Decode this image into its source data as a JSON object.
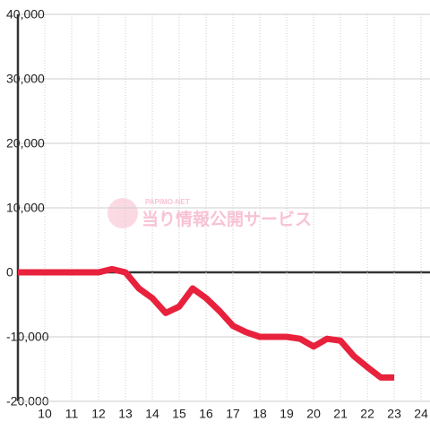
{
  "chart_data": {
    "type": "line",
    "watermark_small": "PAPIMO-NET",
    "watermark": "当り情報公開サービス",
    "x": [
      9,
      12,
      12.5,
      13,
      13.5,
      14,
      14.5,
      15,
      15.5,
      16,
      16.5,
      17,
      17.5,
      18,
      18.5,
      19,
      19.5,
      20,
      20.5,
      21,
      21.5,
      22,
      22.5,
      23
    ],
    "series": [
      {
        "color": "#e8213c",
        "values": [
          0,
          0,
          500,
          0,
          -2500,
          -4000,
          -6300,
          -5300,
          -2500,
          -4000,
          -6000,
          -8300,
          -9300,
          -10000,
          -10000,
          -10000,
          -10300,
          -11500,
          -10300,
          -10600,
          -13000,
          -14700,
          -16300,
          -16300
        ]
      }
    ],
    "xlim": [
      9,
      24.33
    ],
    "xticks": [
      10,
      11,
      12,
      13,
      14,
      15,
      16,
      17,
      18,
      19,
      20,
      21,
      22,
      23,
      24
    ],
    "ylim": [
      -20000,
      40000
    ],
    "yticks": [
      {
        "value": 40000,
        "label": "40,000"
      },
      {
        "value": 30000,
        "label": "30,000"
      },
      {
        "value": 20000,
        "label": "20,000"
      },
      {
        "value": 10000,
        "label": "10,000"
      },
      0,
      {
        "value": -10000,
        "label": "-10,000"
      },
      {
        "value": -20000,
        "label": "-20,000"
      }
    ],
    "grid": true
  }
}
